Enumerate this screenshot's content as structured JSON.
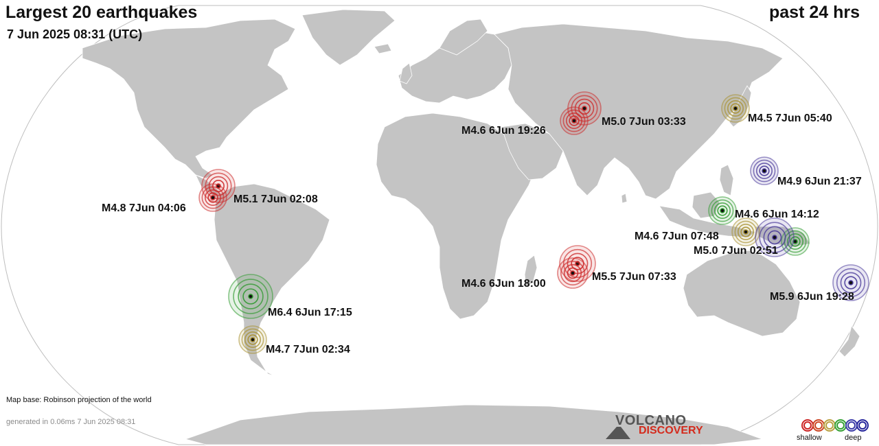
{
  "header": {
    "title": "Largest 20 earthquakes",
    "datetime": "7 Jun 2025 08:31 (UTC)",
    "period": "past 24 hrs"
  },
  "footer": {
    "map_base": "Map base: Robinson projection of the world",
    "generated": "generated in 0.06ms  7 Jun 2025 08:31"
  },
  "logo": {
    "line1": "VOLCANO",
    "line2": "DISCOVERY"
  },
  "legend": {
    "shallow": "shallow",
    "deep": "deep",
    "colors": [
      "#cc2222",
      "#cc4422",
      "#b8a040",
      "#33a033",
      "#3a3aa8",
      "#22229a"
    ]
  },
  "colors": {
    "land": "#c4c4c4",
    "ocean": "#ffffff",
    "border": "#ffffff",
    "outline": "#bdbdbd"
  },
  "quakes": [
    {
      "label": "M5.0  7Jun 03:33",
      "depth_class": "shallow"
    },
    {
      "label": "M4.6  6Jun 19:26",
      "depth_class": "shallow"
    },
    {
      "label": "M4.5  7Jun 05:40",
      "depth_class": "intermediate"
    },
    {
      "label": "M4.9  6Jun 21:37",
      "depth_class": "deep"
    },
    {
      "label": "M5.1  7Jun 02:08",
      "depth_class": "shallow"
    },
    {
      "label": "M4.8  7Jun 04:06",
      "depth_class": "shallow"
    },
    {
      "label": "M4.6  6Jun 14:12",
      "depth_class": "medium"
    },
    {
      "label": "M4.6  7Jun 07:48",
      "depth_class": "intermediate"
    },
    {
      "label": "M5.0  7Jun 02:51",
      "depth_class": "deep"
    },
    {
      "label": "M5.5  7Jun 07:33",
      "depth_class": "shallow"
    },
    {
      "label": "M4.6  6Jun 18:00",
      "depth_class": "shallow"
    },
    {
      "label": "M5.9  6Jun 19:28",
      "depth_class": "deep"
    },
    {
      "label": "M6.4  6Jun 17:15",
      "depth_class": "medium"
    },
    {
      "label": "M4.7  7Jun 02:34",
      "depth_class": "intermediate"
    }
  ]
}
